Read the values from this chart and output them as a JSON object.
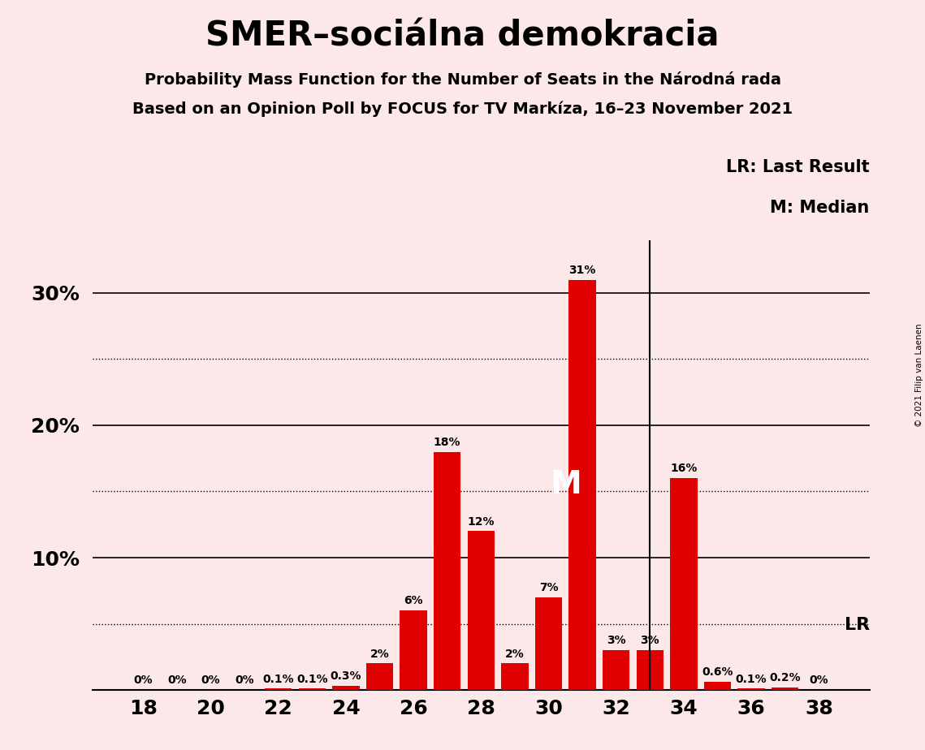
{
  "title": "SMER–sociálna demokracia",
  "subtitle1": "Probability Mass Function for the Number of Seats in the Národná rada",
  "subtitle2": "Based on an Opinion Poll by FOCUS for TV Markíza, 16–23 November 2021",
  "copyright": "© 2021 Filip van Laenen",
  "seats": [
    18,
    19,
    20,
    21,
    22,
    23,
    24,
    25,
    26,
    27,
    28,
    29,
    30,
    31,
    32,
    33,
    34,
    35,
    36,
    37,
    38
  ],
  "probabilities": [
    0.0,
    0.0,
    0.0,
    0.0,
    0.1,
    0.1,
    0.3,
    2.0,
    6.0,
    18.0,
    12.0,
    2.0,
    7.0,
    31.0,
    3.0,
    3.0,
    16.0,
    0.6,
    0.1,
    0.2,
    0.0
  ],
  "labels": [
    "0%",
    "0%",
    "0%",
    "0%",
    "0.1%",
    "0.1%",
    "0.3%",
    "2%",
    "6%",
    "18%",
    "12%",
    "2%",
    "7%",
    "31%",
    "3%",
    "3%",
    "16%",
    "0.6%",
    "0.1%",
    "0.2%",
    "0%"
  ],
  "bar_color": "#e00000",
  "background_color": "#fce8e8",
  "solid_lines": [
    10,
    20,
    30
  ],
  "dotted_lines": [
    5,
    15,
    25
  ],
  "median_seat": 31,
  "lr_seat": 33,
  "lr_label": "LR",
  "lr_legend": "LR: Last Result",
  "m_legend": "M: Median",
  "xlabel_ticks": [
    18,
    20,
    22,
    24,
    26,
    28,
    30,
    32,
    34,
    36,
    38
  ],
  "xlim": [
    16.5,
    39.5
  ],
  "ylim": [
    0,
    34
  ]
}
